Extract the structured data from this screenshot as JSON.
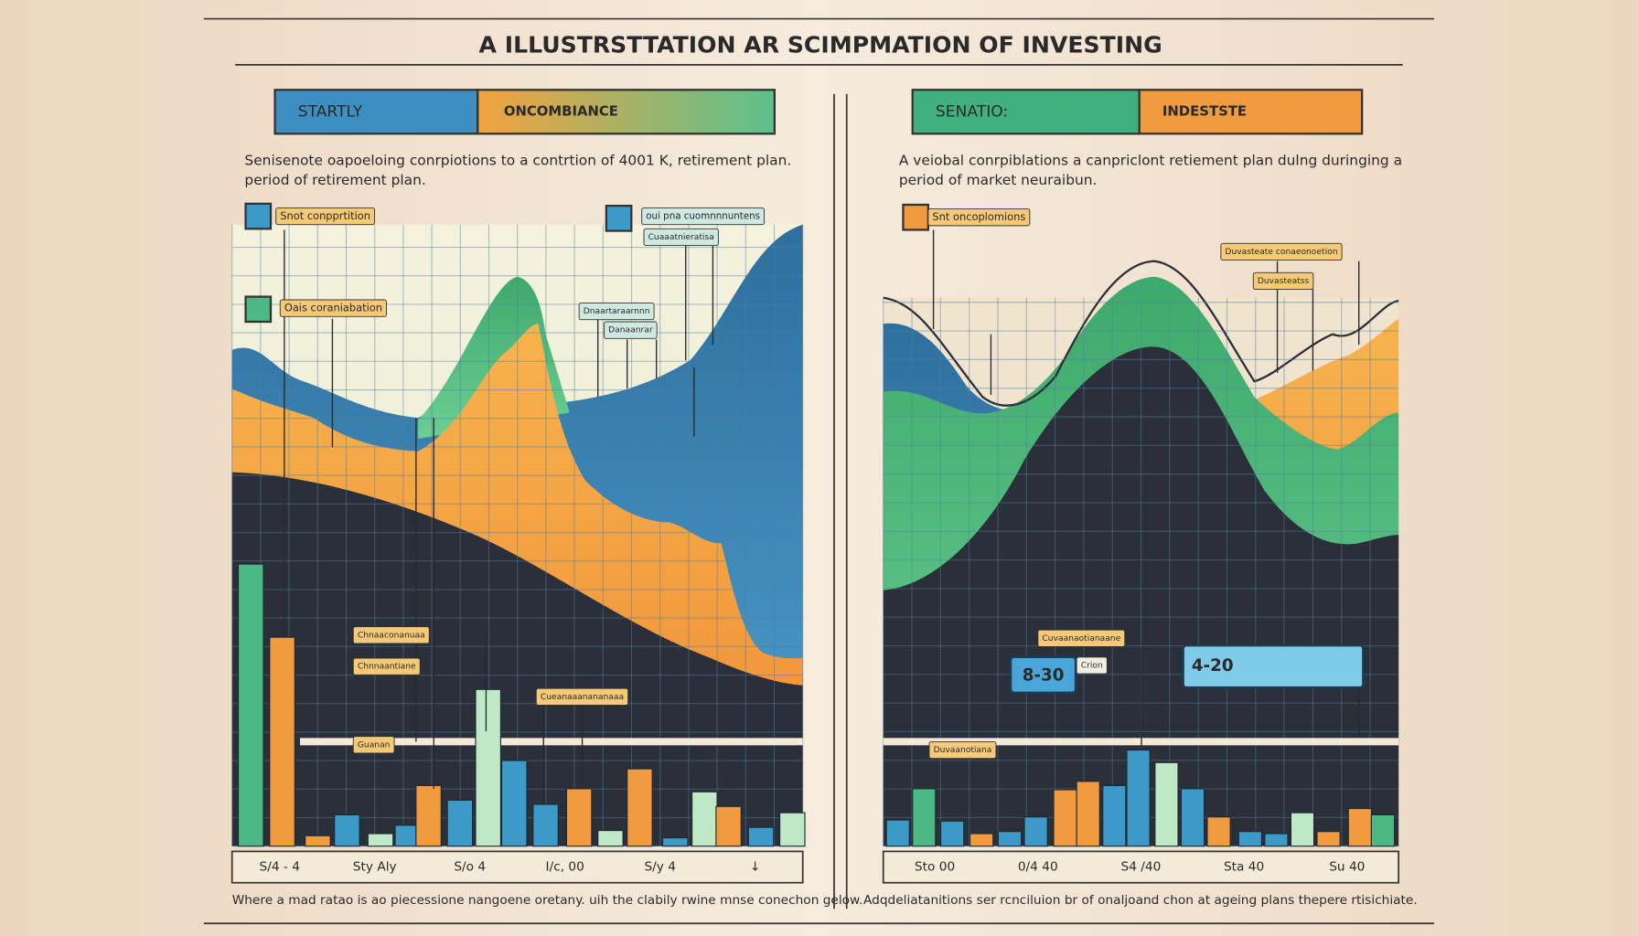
{
  "header": {
    "title": "A ILLUSTRSTTATION AR SCIMPMATION OF INVESTING"
  },
  "left_panel": {
    "tabs": [
      "STARTLY",
      "ONCOMBIANCE"
    ],
    "description": [
      "Senisenote oapoeloing conrpiotions to a contrtion of 4001 K, retirement plan.",
      "period of retirement plan."
    ],
    "labels": [
      "Snot conpprtition",
      "oui pna cuomnnnuntens",
      "Cuaaatnieratisa",
      "Oais coraniabation",
      "Dnaartaraarnnn",
      "Danaanrar",
      "Chnaaconanuaa",
      "Chnnaantiane",
      "Cueanaaanananaaa",
      "Guanan"
    ],
    "axis_labels": [
      "S/4 - 4",
      "Sty Aly",
      "S/o 4",
      "I/c, 00",
      "S/y 4",
      "↓"
    ],
    "footer": "Where a mad ratao is ao piecessione nangoene oretany. uih the clabily rwine mnse conechon gelow."
  },
  "right_panel": {
    "tabs": [
      "SENATIO:",
      "INDESTSTE"
    ],
    "description": [
      "A veiobal conrpiblations a canpriclont retiement plan dulng duringing a",
      "period of market neuraibun."
    ],
    "labels": [
      "Snt oncoplomions",
      "Duvasteate conaeonoetion",
      "Duvasteatss",
      "Cuvaanaotianaane",
      "Crion",
      "Duvaanotiana"
    ],
    "badges": [
      "8-30",
      "4-20"
    ],
    "axis_labels": [
      "Sto 00",
      "0/4 40",
      "S4 /40",
      "Sta 40",
      "Su 40"
    ],
    "footer": "Adqdeliatanitions ser rcnciluion br of onaljoand chon at ageing plans thepere rtisichiate."
  }
}
